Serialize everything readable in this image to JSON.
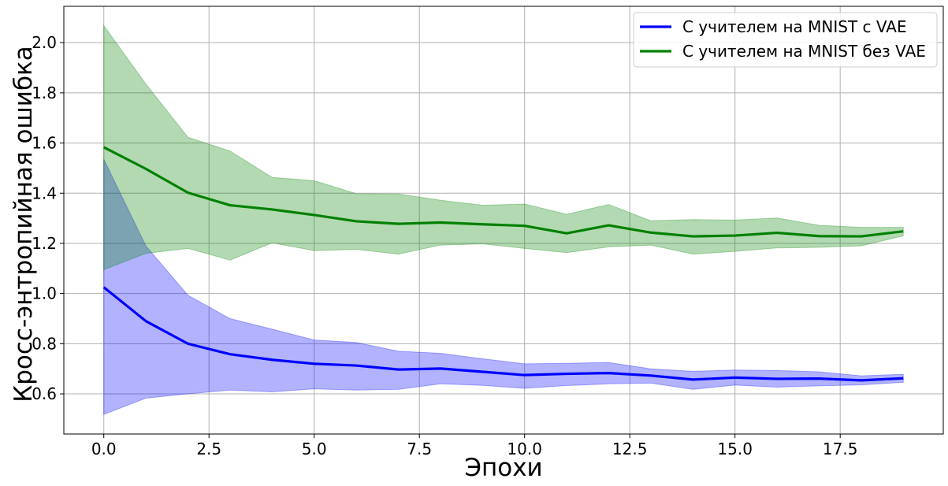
{
  "chart_data": {
    "type": "line",
    "title": "",
    "xlabel": "Эпохи",
    "ylabel": "Кросс-энтропийная ошибка",
    "xlim": [
      -0.95,
      19.95
    ],
    "ylim": [
      0.44,
      2.145
    ],
    "xticks": [
      0,
      2.5,
      5,
      7.5,
      10,
      12.5,
      15,
      17.5
    ],
    "xtick_labels": [
      "0.0",
      "2.5",
      "5.0",
      "7.5",
      "10.0",
      "12.5",
      "15.0",
      "17.5"
    ],
    "yticks": [
      0.6,
      0.8,
      1.0,
      1.2,
      1.4,
      1.6,
      1.8,
      2.0
    ],
    "ytick_labels": [
      "0.6",
      "0.8",
      "1.0",
      "1.2",
      "1.4",
      "1.6",
      "1.8",
      "2.0"
    ],
    "grid": true,
    "legend_position": "top-right",
    "x": [
      0,
      1,
      2,
      3,
      4,
      5,
      6,
      7,
      8,
      9,
      10,
      11,
      12,
      13,
      14,
      15,
      16,
      17,
      18,
      19
    ],
    "series": [
      {
        "name": "С учителем на MNIST с VAE",
        "color": "#0000ff",
        "band_color": "#0000ff",
        "values": [
          1.025,
          0.89,
          0.8,
          0.758,
          0.736,
          0.72,
          0.713,
          0.697,
          0.701,
          0.688,
          0.675,
          0.68,
          0.683,
          0.673,
          0.657,
          0.665,
          0.66,
          0.661,
          0.654,
          0.662
        ],
        "upper": [
          1.535,
          1.19,
          0.993,
          0.9,
          0.858,
          0.815,
          0.805,
          0.77,
          0.762,
          0.74,
          0.72,
          0.722,
          0.725,
          0.7,
          0.69,
          0.695,
          0.693,
          0.688,
          0.672,
          0.678
        ],
        "lower": [
          0.518,
          0.583,
          0.6,
          0.615,
          0.608,
          0.62,
          0.615,
          0.618,
          0.64,
          0.634,
          0.622,
          0.633,
          0.64,
          0.643,
          0.618,
          0.635,
          0.627,
          0.632,
          0.636,
          0.646
        ]
      },
      {
        "name": "С учителем на MNIST без VAE",
        "color": "#008000",
        "band_color": "#008000",
        "values": [
          1.583,
          1.497,
          1.402,
          1.352,
          1.335,
          1.313,
          1.288,
          1.278,
          1.283,
          1.276,
          1.27,
          1.24,
          1.272,
          1.243,
          1.228,
          1.231,
          1.242,
          1.229,
          1.228,
          1.248
        ],
        "upper": [
          2.068,
          1.835,
          1.623,
          1.568,
          1.463,
          1.45,
          1.398,
          1.397,
          1.372,
          1.352,
          1.357,
          1.316,
          1.355,
          1.29,
          1.295,
          1.293,
          1.301,
          1.272,
          1.264,
          1.264
        ],
        "lower": [
          1.095,
          1.16,
          1.18,
          1.133,
          1.202,
          1.171,
          1.176,
          1.157,
          1.193,
          1.198,
          1.18,
          1.163,
          1.186,
          1.193,
          1.157,
          1.168,
          1.182,
          1.184,
          1.19,
          1.23
        ]
      }
    ]
  }
}
